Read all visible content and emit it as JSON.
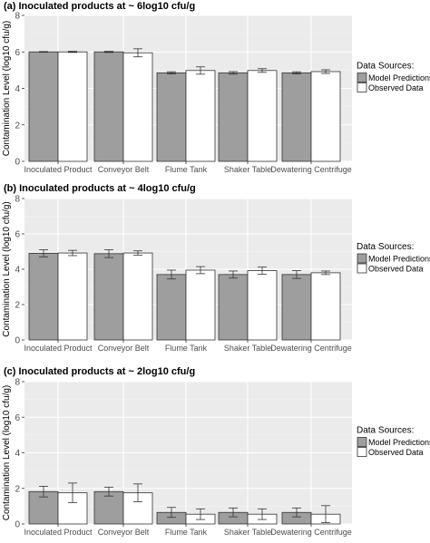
{
  "figure": {
    "ylabel": "Contamination Level (log10 cfu/g)",
    "legend_title": "Data Sources:",
    "legend_items": [
      {
        "label": "Model Predictions",
        "color": "#9e9e9e"
      },
      {
        "label": "Observed Data",
        "color": "#ffffff"
      }
    ]
  },
  "chart_data": [
    {
      "type": "bar",
      "title": "(a) Inoculated products at ~ 6log10 cfu/g",
      "categories": [
        "Inoculated Product",
        "Conveyor Belt",
        "Flume Tank",
        "Shaker Table",
        "Dewatering Centrifuge"
      ],
      "ylim": [
        0,
        8
      ],
      "yticks": [
        0,
        2,
        4,
        6,
        8
      ],
      "grid": true,
      "legend_position": "right",
      "series": [
        {
          "name": "Model Predictions",
          "color": "#9e9e9e",
          "values": [
            6.0,
            6.0,
            4.85,
            4.85,
            4.85
          ],
          "errors": [
            0.02,
            0.03,
            0.06,
            0.07,
            0.06
          ]
        },
        {
          "name": "Observed Data",
          "color": "#ffffff",
          "values": [
            6.0,
            5.95,
            4.98,
            4.98,
            4.92
          ],
          "errors": [
            0.03,
            0.22,
            0.2,
            0.1,
            0.1
          ]
        }
      ]
    },
    {
      "type": "bar",
      "title": "(b) Inoculated products at ~ 4log10 cfu/g",
      "categories": [
        "Inoculated Product",
        "Conveyor Belt",
        "Flume Tank",
        "Shaker Table",
        "Dewatering Centrifuge"
      ],
      "ylim": [
        0,
        8
      ],
      "yticks": [
        0,
        2,
        4,
        6,
        8
      ],
      "grid": true,
      "legend_position": "right",
      "series": [
        {
          "name": "Model Predictions",
          "color": "#9e9e9e",
          "values": [
            4.9,
            4.88,
            3.7,
            3.7,
            3.7
          ],
          "errors": [
            0.2,
            0.22,
            0.25,
            0.2,
            0.22
          ]
        },
        {
          "name": "Observed Data",
          "color": "#ffffff",
          "values": [
            4.92,
            4.92,
            3.95,
            3.92,
            3.8
          ],
          "errors": [
            0.15,
            0.12,
            0.2,
            0.2,
            0.1
          ]
        }
      ]
    },
    {
      "type": "bar",
      "title": "(c) Inoculated products at ~ 2log10 cfu/g",
      "categories": [
        "Inoculated Product",
        "Conveyor Belt",
        "Flume Tank",
        "Shaker Table",
        "Dewatering Centrifuge"
      ],
      "ylim": [
        0,
        8
      ],
      "yticks": [
        0,
        2,
        4,
        6,
        8
      ],
      "grid": true,
      "legend_position": "right",
      "series": [
        {
          "name": "Model Predictions",
          "color": "#9e9e9e",
          "values": [
            1.82,
            1.82,
            0.65,
            0.65,
            0.65
          ],
          "errors": [
            0.3,
            0.25,
            0.28,
            0.25,
            0.25
          ]
        },
        {
          "name": "Observed Data",
          "color": "#ffffff",
          "values": [
            1.75,
            1.75,
            0.55,
            0.55,
            0.55
          ],
          "errors": [
            0.55,
            0.5,
            0.3,
            0.3,
            0.48
          ]
        }
      ]
    }
  ]
}
